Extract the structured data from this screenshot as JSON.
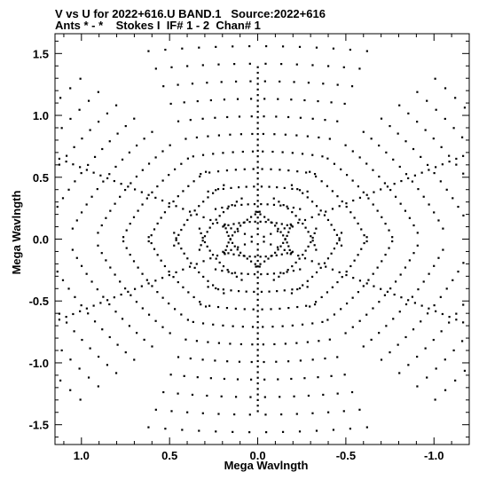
{
  "header": {
    "title": "V vs U for 2022+616.U BAND.1   Source:2022+616",
    "subtitle": "Ants * - *    Stokes I  IF# 1 - 2  Chan# 1"
  },
  "chart_data": {
    "type": "scatter",
    "title": "V vs U for 2022+616.U BAND.1   Source:2022+616",
    "subtitle": "Ants * - *    Stokes I  IF# 1 - 2  Chan# 1",
    "xlabel": "Mega Wavlngth",
    "ylabel": "Mega Wavlngth",
    "xlim": [
      1.15,
      -1.2
    ],
    "ylim": [
      -1.66,
      1.66
    ],
    "x_reversed": true,
    "x_ticks": [
      1.0,
      0.5,
      0.0,
      -0.5,
      -1.0
    ],
    "x_tick_labels": [
      "1.0",
      "0.5",
      "0.0",
      "-0.5",
      "-1.0"
    ],
    "y_ticks": [
      1.5,
      1.0,
      0.5,
      0.0,
      -0.5,
      -1.0,
      -1.5
    ],
    "y_tick_labels": [
      "1.5",
      "1.0",
      "0.5",
      "0.0",
      "-0.5",
      "-1.0",
      "-1.5"
    ],
    "grid": false,
    "marker": "point",
    "color": "#000000",
    "pattern": "symmetric six-armed uv coverage, tracks centered at origin",
    "series": [
      {
        "arm_angles_deg": [
          90,
          30,
          -30
        ],
        "tracks_per_arm": 11,
        "samples_per_track": 14,
        "max_radius": 1.56,
        "track_half_width": 0.62
      }
    ]
  }
}
